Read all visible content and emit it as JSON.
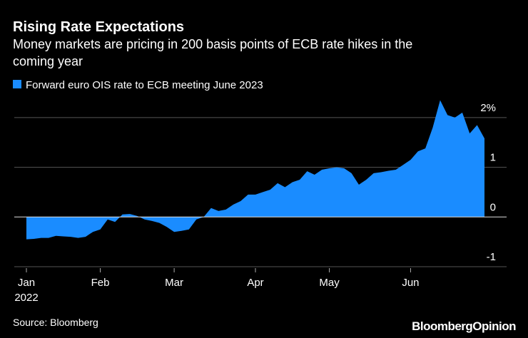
{
  "chart_data": {
    "type": "area",
    "title": "Rising Rate Expectations",
    "subtitle": [
      "Money markets are pricing in 200 basis points of ECB rate hikes in the",
      "coming year"
    ],
    "categories": [
      "Jan",
      null,
      null,
      null,
      null,
      null,
      null,
      null,
      null,
      null,
      "Feb",
      null,
      null,
      null,
      null,
      null,
      null,
      null,
      null,
      null,
      "Mar",
      null,
      null,
      null,
      null,
      null,
      null,
      null,
      null,
      null,
      null,
      "Apr",
      null,
      null,
      null,
      null,
      null,
      null,
      null,
      null,
      null,
      "May",
      null,
      null,
      null,
      null,
      null,
      null,
      null,
      null,
      null,
      null,
      "Jun",
      null,
      null,
      null,
      null,
      null,
      null,
      null,
      null,
      null,
      null
    ],
    "year_label": "2022",
    "series": [
      {
        "name": "Forward euro OIS rate to ECB meeting June 2023",
        "color": "#1a8cff",
        "values": [
          -0.45,
          -0.44,
          -0.42,
          -0.42,
          -0.38,
          -0.39,
          -0.4,
          -0.42,
          -0.4,
          -0.3,
          -0.25,
          -0.05,
          -0.1,
          0.05,
          0.06,
          0.02,
          -0.05,
          -0.08,
          -0.12,
          -0.2,
          -0.3,
          -0.28,
          -0.25,
          -0.05,
          0.0,
          0.18,
          0.12,
          0.15,
          0.25,
          0.32,
          0.45,
          0.45,
          0.5,
          0.55,
          0.68,
          0.6,
          0.7,
          0.75,
          0.92,
          0.85,
          0.95,
          0.98,
          1.0,
          0.98,
          0.88,
          0.65,
          0.75,
          0.88,
          0.9,
          0.93,
          0.95,
          1.05,
          1.15,
          1.32,
          1.38,
          1.8,
          2.35,
          2.05,
          2.0,
          2.1,
          1.68,
          1.85,
          1.58
        ]
      }
    ],
    "ylim": [
      -1,
      2.5
    ],
    "yticks": [
      {
        "value": 2,
        "label": "2%"
      },
      1,
      0,
      -1
    ],
    "grid": true,
    "source": "Source: Bloomberg",
    "logo": "BloombergOpinion"
  }
}
